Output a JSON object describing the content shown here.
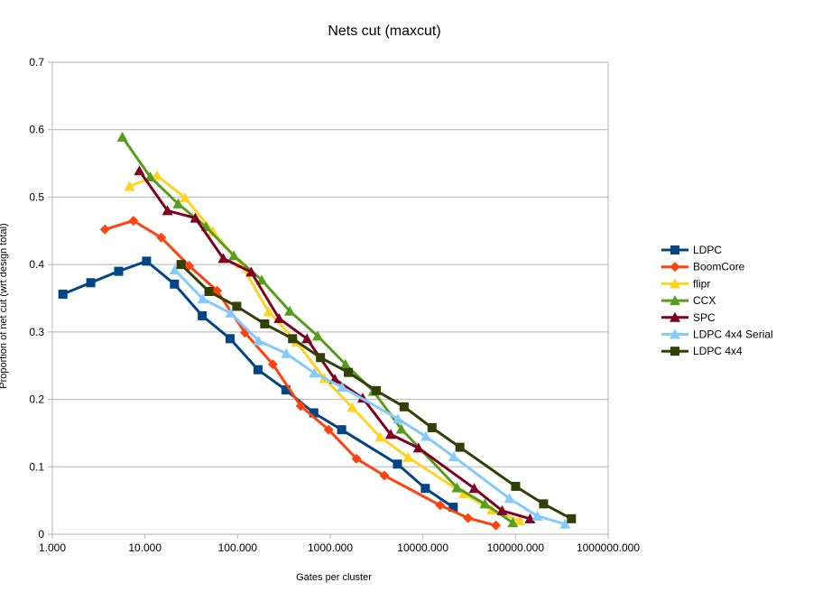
{
  "chart_data": {
    "type": "line",
    "title": "Nets cut (maxcut)",
    "xlabel": "Gates per cluster",
    "ylabel": "Proportion of net cut (wrt design total)",
    "x_scale": "log",
    "xlim": [
      1,
      1000000
    ],
    "ylim": [
      0,
      0.7
    ],
    "x_tick_labels": [
      "1.000",
      "10.000",
      "100.000",
      "1000.000",
      "10000.000",
      "100000.000",
      "1000000.000"
    ],
    "y_tick_labels": [
      "0",
      "0.1",
      "0.2",
      "0.3",
      "0.4",
      "0.5",
      "0.6",
      "0.7"
    ],
    "grid": "horizontal",
    "legend_position": "right",
    "series": [
      {
        "name": "LDPC",
        "color": "#004586",
        "marker": "square",
        "x": [
          1.3,
          2.6,
          5.2,
          10.4,
          20.8,
          41.5,
          83,
          166,
          332,
          664,
          1328,
          5312,
          10624,
          21248
        ],
        "y": [
          0.356,
          0.373,
          0.39,
          0.405,
          0.371,
          0.324,
          0.29,
          0.244,
          0.214,
          0.18,
          0.155,
          0.104,
          0.068,
          0.04
        ]
      },
      {
        "name": "BoomCore",
        "color": "#ff420e",
        "marker": "diamond",
        "x": [
          3.7,
          7.5,
          15,
          30,
          60,
          120,
          240,
          480,
          960,
          1920,
          3840,
          15360,
          30720,
          61440
        ],
        "y": [
          0.452,
          0.465,
          0.44,
          0.398,
          0.361,
          0.299,
          0.252,
          0.19,
          0.155,
          0.112,
          0.087,
          0.043,
          0.024,
          0.013
        ]
      },
      {
        "name": "flipr",
        "color": "#ffd320",
        "marker": "triangle",
        "x": [
          6.8,
          13.5,
          27,
          54,
          108,
          216,
          432,
          864,
          1730,
          3460,
          6920,
          27700,
          55400,
          110800
        ],
        "y": [
          0.516,
          0.532,
          0.499,
          0.449,
          0.401,
          0.33,
          0.285,
          0.231,
          0.188,
          0.144,
          0.114,
          0.06,
          0.036,
          0.02
        ]
      },
      {
        "name": "CCX",
        "color": "#579d1c",
        "marker": "triangle",
        "x": [
          5.7,
          11.4,
          22.8,
          45.6,
          91,
          182,
          365,
          730,
          1460,
          2920,
          5840,
          23360,
          46720,
          93440
        ],
        "y": [
          0.589,
          0.53,
          0.49,
          0.456,
          0.413,
          0.377,
          0.331,
          0.294,
          0.252,
          0.212,
          0.156,
          0.069,
          0.045,
          0.017
        ]
      },
      {
        "name": "SPC",
        "color": "#7e0021",
        "marker": "triangle",
        "x": [
          8.7,
          17.5,
          35,
          70,
          140,
          280,
          560,
          1120,
          2240,
          4480,
          8960,
          35840,
          71680,
          143360
        ],
        "y": [
          0.539,
          0.48,
          0.469,
          0.409,
          0.389,
          0.32,
          0.29,
          0.23,
          0.202,
          0.148,
          0.128,
          0.068,
          0.035,
          0.023
        ]
      },
      {
        "name": "LDPC 4x4 Serial",
        "color": "#83caff",
        "marker": "triangle",
        "x": [
          21,
          42,
          84,
          168,
          336,
          672,
          1344,
          5376,
          10752,
          21504,
          86016,
          172032,
          344064
        ],
        "y": [
          0.392,
          0.349,
          0.328,
          0.287,
          0.268,
          0.239,
          0.218,
          0.171,
          0.145,
          0.115,
          0.053,
          0.027,
          0.015
        ]
      },
      {
        "name": "LDPC 4x4",
        "color": "#314004",
        "marker": "square",
        "x": [
          24.5,
          49,
          98,
          196,
          392,
          784,
          1568,
          3136,
          6272,
          12544,
          25088,
          100352,
          200704,
          401408
        ],
        "y": [
          0.4,
          0.36,
          0.338,
          0.312,
          0.29,
          0.262,
          0.24,
          0.213,
          0.189,
          0.158,
          0.129,
          0.071,
          0.045,
          0.023
        ]
      }
    ]
  }
}
